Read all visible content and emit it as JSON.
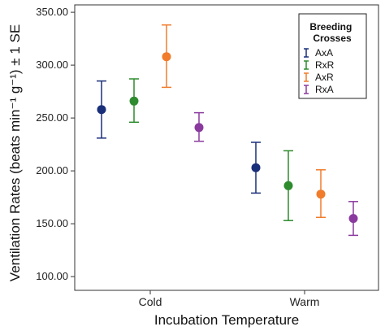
{
  "chart_data": {
    "type": "scatter",
    "title": "",
    "xlabel": "Incubation Temperature",
    "ylabel": "Ventilation Rates (beats min⁻¹ g⁻¹) ± 1 SE",
    "ylim": [
      87,
      357
    ],
    "yticks": [
      "100.00",
      "150.00",
      "200.00",
      "250.00",
      "300.00",
      "350.00"
    ],
    "categories": [
      "Cold",
      "Warm"
    ],
    "grid": false,
    "legend": {
      "title": "Breeding Crosses",
      "position": "top-right"
    },
    "series": [
      {
        "name": "AxA",
        "color": "#1a2f7a",
        "values": [
          258,
          203
        ],
        "lower": [
          231,
          179
        ],
        "upper": [
          285,
          227
        ]
      },
      {
        "name": "RxR",
        "color": "#2e8b2e",
        "values": [
          266,
          186
        ],
        "lower": [
          246,
          153
        ],
        "upper": [
          287,
          219
        ]
      },
      {
        "name": "AxR",
        "color": "#f07c2c",
        "values": [
          308,
          178
        ],
        "lower": [
          279,
          156
        ],
        "upper": [
          338,
          201
        ]
      },
      {
        "name": "RxA",
        "color": "#8a3a9e",
        "values": [
          241,
          155
        ],
        "lower": [
          228,
          139
        ],
        "upper": [
          255,
          171
        ]
      }
    ]
  }
}
